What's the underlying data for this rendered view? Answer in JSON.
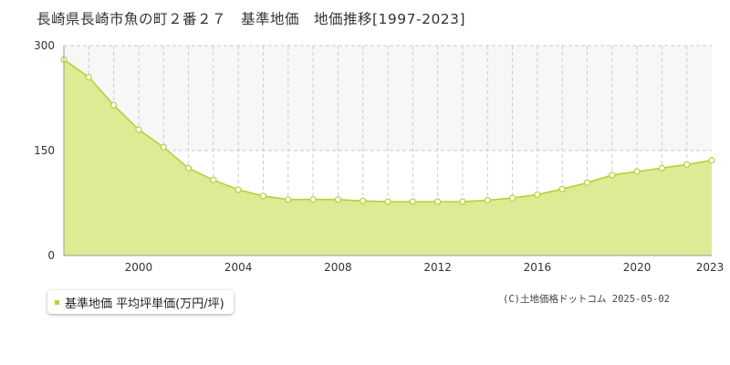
{
  "title": "長崎県長崎市魚の町２番２７　基準地価　地価推移[1997-2023]",
  "legend": {
    "label": "基準地価 平均坪単価(万円/坪)"
  },
  "copyright": "(C)土地価格ドットコム 2025-05-02",
  "colors": {
    "fill": "#dceb94",
    "line": "#b3d334",
    "marker_fill": "#ffffff",
    "grid": "#cccccc",
    "upper_band": "#f7f7f7"
  },
  "chart_data": {
    "type": "area",
    "title": "長崎県長崎市魚の町２番２７　基準地価　地価推移[1997-2023]",
    "xlabel": "",
    "ylabel": "",
    "xlim": [
      1997,
      2023
    ],
    "ylim": [
      0,
      300
    ],
    "x_ticks": [
      "2000",
      "2004",
      "2008",
      "2012",
      "2016",
      "2020",
      "2023"
    ],
    "y_ticks": [
      "0",
      "150",
      "300"
    ],
    "grid": true,
    "legend_position": "bottom-left",
    "series": [
      {
        "name": "基準地価 平均坪単価(万円/坪)",
        "x": [
          1997,
          1998,
          1999,
          2000,
          2001,
          2002,
          2003,
          2004,
          2005,
          2006,
          2007,
          2008,
          2009,
          2010,
          2011,
          2012,
          2013,
          2014,
          2015,
          2016,
          2017,
          2018,
          2019,
          2020,
          2021,
          2022,
          2023
        ],
        "y": [
          280,
          255,
          215,
          180,
          155,
          125,
          108,
          94,
          85,
          80,
          80,
          80,
          78,
          77,
          77,
          77,
          77,
          79,
          82,
          87,
          95,
          104,
          115,
          120,
          125,
          130,
          136
        ]
      }
    ]
  }
}
